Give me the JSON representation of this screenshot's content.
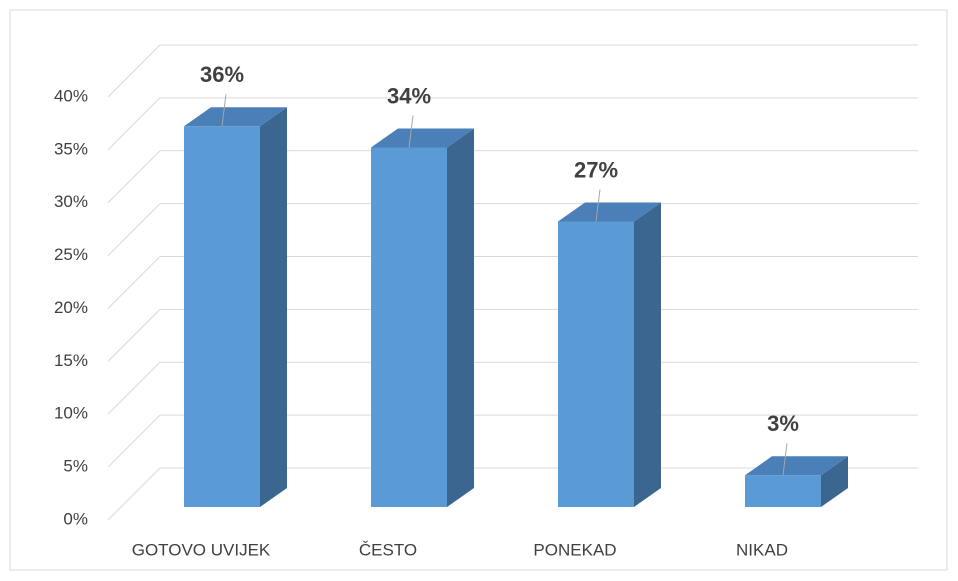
{
  "chart_data": {
    "type": "bar3d",
    "categories": [
      "GOTOVO UVIJEK",
      "ČESTO",
      "PONEKAD",
      "NIKAD"
    ],
    "values": [
      36,
      34,
      27,
      3
    ],
    "value_labels": [
      "36%",
      "34%",
      "27%",
      "3%"
    ],
    "color": "#5b9bd5",
    "ylim": [
      0,
      40
    ],
    "yticks": [
      {
        "value": 0,
        "label": "0%"
      },
      {
        "value": 5,
        "label": "5%"
      },
      {
        "value": 10,
        "label": "10%"
      },
      {
        "value": 15,
        "label": "15%"
      },
      {
        "value": 20,
        "label": "20%"
      },
      {
        "value": 25,
        "label": "25%"
      },
      {
        "value": 30,
        "label": "30%"
      },
      {
        "value": 35,
        "label": "35%"
      },
      {
        "value": 40,
        "label": "40%"
      }
    ],
    "grid": true
  }
}
